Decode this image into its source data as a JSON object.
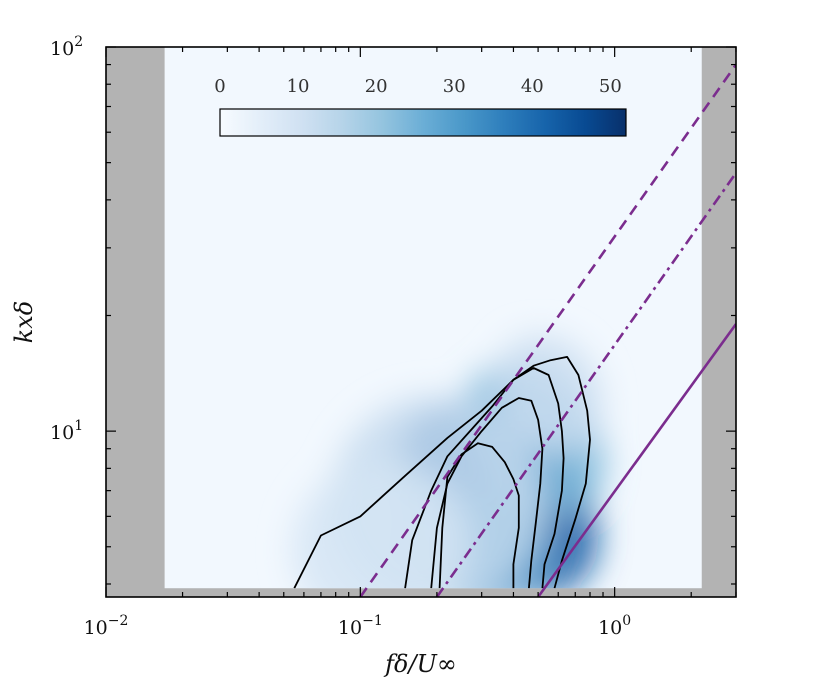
{
  "chart_data": {
    "type": "heatmap",
    "title": "",
    "xlabel": "fδ/U∞",
    "ylabel": "kxδ",
    "xscale": "log",
    "yscale": "log",
    "xlim": [
      0.01,
      3.0
    ],
    "ylim": [
      3.7,
      100
    ],
    "x_ticks": [
      {
        "value": 0.01,
        "label": "10",
        "exp": "−2"
      },
      {
        "value": 0.1,
        "label": "10",
        "exp": "−1"
      },
      {
        "value": 1,
        "label": "10",
        "exp": "0"
      }
    ],
    "y_ticks": [
      {
        "value": 10,
        "label": "10",
        "exp": "1"
      },
      {
        "value": 100,
        "label": "10",
        "exp": "2"
      }
    ],
    "data_region": {
      "x": [
        0.017,
        2.2
      ],
      "y": [
        3.9,
        100
      ]
    },
    "colorbar": {
      "range": [
        0,
        52
      ],
      "ticks": [
        "0",
        "10",
        "20",
        "30",
        "40",
        "50"
      ],
      "colormap": "Blues",
      "placement": "top inside"
    },
    "background_color": "#b3b3b3",
    "heatmap_blobs": [
      {
        "cx": 0.35,
        "cy": 6.6,
        "sx": 0.3,
        "sy": 0.3,
        "rot": 48,
        "v": 44
      },
      {
        "cx": 0.3,
        "cy": 4.9,
        "sx": 0.29,
        "sy": 0.16,
        "rot": 0,
        "v": 30
      },
      {
        "cx": 0.48,
        "cy": 9.5,
        "sx": 0.24,
        "sy": 0.22,
        "rot": 40,
        "v": 24
      },
      {
        "cx": 0.2,
        "cy": 6.5,
        "sx": 0.42,
        "sy": 0.28,
        "rot": 35,
        "v": 13
      },
      {
        "cx": 0.55,
        "cy": 12.5,
        "sx": 0.2,
        "sy": 0.16,
        "rot": 30,
        "v": 12
      },
      {
        "cx": 0.12,
        "cy": 5.0,
        "sx": 0.35,
        "sy": 0.22,
        "rot": 20,
        "v": 9
      }
    ],
    "contour_color": "#000000",
    "contours": [
      [
        [
          0.055,
          3.9
        ],
        [
          0.07,
          5.35
        ],
        [
          0.1,
          6.0
        ],
        [
          0.15,
          7.65
        ],
        [
          0.22,
          9.6
        ],
        [
          0.3,
          11.3
        ],
        [
          0.4,
          13.6
        ],
        [
          0.48,
          14.8
        ],
        [
          0.56,
          15.3
        ],
        [
          0.65,
          15.6
        ],
        [
          0.72,
          14.0
        ],
        [
          0.78,
          11.3
        ],
        [
          0.8,
          9.5
        ],
        [
          0.77,
          7.3
        ],
        [
          0.7,
          5.9
        ],
        [
          0.62,
          4.6
        ],
        [
          0.58,
          3.9
        ]
      ],
      [
        [
          0.15,
          3.9
        ],
        [
          0.16,
          5.2
        ],
        [
          0.19,
          7.0
        ],
        [
          0.22,
          8.6
        ],
        [
          0.27,
          10.0
        ],
        [
          0.33,
          11.6
        ],
        [
          0.4,
          13.6
        ],
        [
          0.48,
          14.6
        ],
        [
          0.55,
          14.0
        ],
        [
          0.6,
          11.8
        ],
        [
          0.62,
          10.0
        ],
        [
          0.63,
          8.5
        ],
        [
          0.62,
          7.0
        ],
        [
          0.58,
          5.4
        ],
        [
          0.53,
          4.5
        ],
        [
          0.52,
          3.9
        ]
      ],
      [
        [
          0.19,
          3.9
        ],
        [
          0.2,
          5.6
        ],
        [
          0.22,
          7.3
        ],
        [
          0.25,
          8.6
        ],
        [
          0.3,
          10.0
        ],
        [
          0.36,
          11.5
        ],
        [
          0.42,
          12.2
        ],
        [
          0.47,
          12.0
        ],
        [
          0.5,
          10.7
        ],
        [
          0.52,
          9.0
        ],
        [
          0.51,
          7.3
        ],
        [
          0.49,
          5.8
        ],
        [
          0.47,
          4.6
        ],
        [
          0.46,
          3.9
        ]
      ],
      [
        [
          0.205,
          3.9
        ],
        [
          0.21,
          5.6
        ],
        [
          0.22,
          7.6
        ],
        [
          0.25,
          8.7
        ],
        [
          0.29,
          9.3
        ],
        [
          0.33,
          9.1
        ],
        [
          0.37,
          8.3
        ],
        [
          0.4,
          7.5
        ],
        [
          0.42,
          6.8
        ],
        [
          0.42,
          5.6
        ],
        [
          0.4,
          4.5
        ],
        [
          0.4,
          3.9
        ]
      ]
    ],
    "reference_lines": [
      {
        "style": "dashed",
        "color": "#7b2d8e",
        "points": [
          [
            0.1,
            3.7
          ],
          [
            3.0,
            90
          ]
        ]
      },
      {
        "style": "dashdot",
        "color": "#7b2d8e",
        "points": [
          [
            0.2,
            3.7
          ],
          [
            3.0,
            47
          ]
        ]
      },
      {
        "style": "solid",
        "color": "#7b2d8e",
        "points": [
          [
            0.5,
            3.7
          ],
          [
            3.0,
            19
          ]
        ]
      }
    ]
  }
}
